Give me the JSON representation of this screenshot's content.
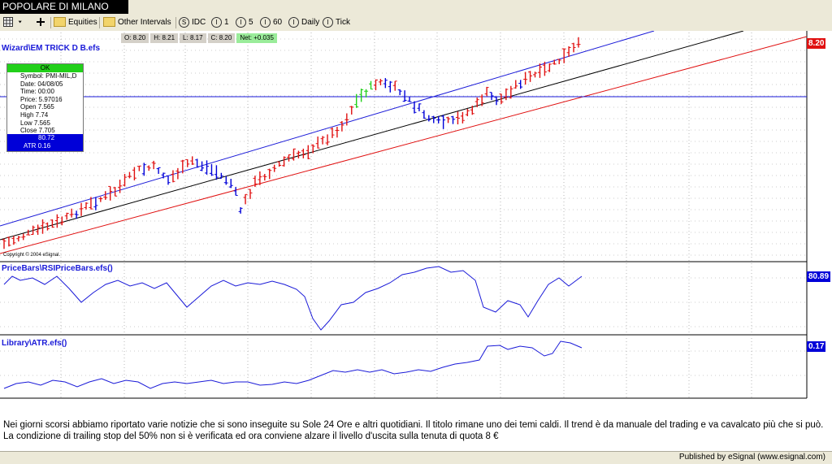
{
  "window": {
    "title": "POPOLARE DI MILANO"
  },
  "toolbar": {
    "equities_label": "Equities",
    "other_intervals_label": "Other Intervals",
    "buttons": [
      "IDC",
      "1",
      "5",
      "60",
      "Daily",
      "Tick"
    ]
  },
  "quote": {
    "open": "O: 8.20",
    "high": "H: 8.21",
    "low": "L: 8.17",
    "close": "C: 8.20",
    "net": "Net: +0.035"
  },
  "studies": {
    "price": {
      "label": "Wizard\\EM TRICK D B.efs",
      "last_value": "8.20",
      "tag_color": "#e01010"
    },
    "rsi": {
      "label": "PriceBars\\RSIPriceBars.efs()",
      "last_value": "80.89",
      "tag_color": "#0000d8"
    },
    "atr": {
      "label": "Library\\ATR.efs()",
      "last_value": "0.17",
      "tag_color": "#0000d8"
    }
  },
  "cursor_window": {
    "status": "OK",
    "rows": [
      "Symbol: PMI-MIL,D",
      "Date: 04/08/05",
      "Time: 00:00",
      "Price: 5.97016",
      "Open 7.565",
      "High 7.74",
      "Low 7.565",
      "Close 7.705",
      "80.72",
      "ATR 0.16"
    ]
  },
  "copyright": "Copyright © 2004 eSignal.",
  "commentary": "Nei giorni scorsi abbiamo riportato varie notizie che si sono inseguite su Sole 24 Ore e altri quotidiani. Il titolo rimane uno dei temi caldi. Il trend è da manuale del trading e va cavalcato più che si può. La condizione di trailing stop del 50% non si è verificata ed ora conviene alzare il livello d'uscita sulla tenuta di quota 8 €",
  "published": "Published by eSignal (www.esignal.com)",
  "colors": {
    "up_bar": "#e01010",
    "down_bar": "#0000d8",
    "neutral_bar": "#22d01a",
    "upper_channel": "#1a1ad8",
    "mid_channel": "#000000",
    "lower_channel": "#e01010",
    "study_line": "#1a1ad8"
  }
}
